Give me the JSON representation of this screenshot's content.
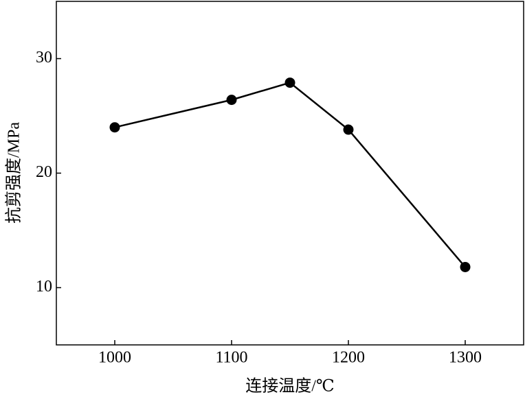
{
  "chart_data": {
    "type": "line",
    "x_label": "连接温度/℃",
    "y_label": "抗剪强度/MPa",
    "x": [
      1000,
      1100,
      1150,
      1200,
      1300
    ],
    "series": [
      {
        "color": "#000000",
        "values": [
          24.0,
          26.4,
          27.9,
          23.8,
          11.8
        ]
      }
    ],
    "xlim": [
      950,
      1350
    ],
    "xticks": [
      1000,
      1100,
      1200,
      1300
    ],
    "ylim": [
      5,
      35
    ],
    "yticks": [
      10,
      20,
      30
    ]
  }
}
